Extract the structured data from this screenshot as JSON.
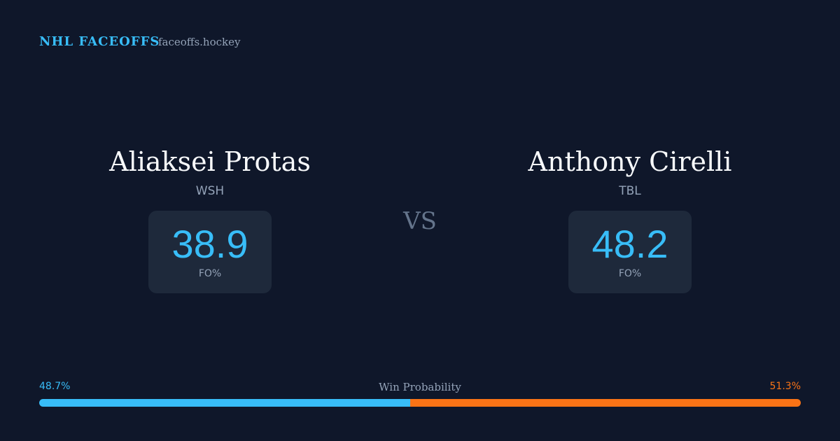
{
  "header": {
    "brand": "NHL FACEOFFS",
    "site": "faceoffs.hockey"
  },
  "players": [
    {
      "name": "Aliaksei Protas",
      "team": "WSH",
      "fo": 38.9,
      "fo_label": "FO%"
    },
    {
      "name": "Anthony Cirelli",
      "team": "TBL",
      "fo": 48.2,
      "fo_label": "FO%"
    }
  ],
  "vs": "VS",
  "win_probability": {
    "title": "Win Probability",
    "left": {
      "value": 48.7,
      "label": "48.7%"
    },
    "right": {
      "value": 51.3,
      "label": "51.3%"
    }
  }
}
